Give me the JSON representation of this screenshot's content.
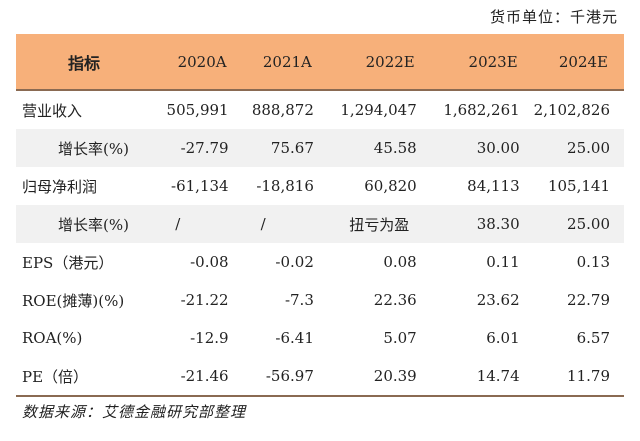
{
  "unit_label": "货币单位：千港元",
  "header": {
    "label": "指标",
    "years": [
      "2020A",
      "2021A",
      "2022E",
      "2023E",
      "2024E"
    ]
  },
  "rows": [
    {
      "label": "营业收入",
      "values": [
        "505,991",
        "888,872",
        "1,294,047",
        "1,682,261",
        "2,102,826"
      ]
    },
    {
      "label": "增长率(%)",
      "values": [
        "-27.79",
        "75.67",
        "45.58",
        "30.00",
        "25.00"
      ]
    },
    {
      "label": "归母净利润",
      "values": [
        "-61,134",
        "-18,816",
        "60,820",
        "84,113",
        "105,141"
      ]
    },
    {
      "label": "增长率(%)",
      "values": [
        "/",
        "/",
        "扭亏为盈",
        "38.30",
        "25.00"
      ]
    },
    {
      "label": "EPS（港元）",
      "values": [
        "-0.08",
        "-0.02",
        "0.08",
        "0.11",
        "0.13"
      ]
    },
    {
      "label": "ROE(摊薄)(%)",
      "values": [
        "-21.22",
        "-7.3",
        "22.36",
        "23.62",
        "22.79"
      ]
    },
    {
      "label": "ROA(%)",
      "values": [
        "-12.9",
        "-6.41",
        "5.07",
        "6.01",
        "6.57"
      ]
    },
    {
      "label": "PE（倍）",
      "values": [
        "-21.46",
        "-56.97",
        "20.39",
        "14.74",
        "11.79"
      ]
    }
  ],
  "source": "数据来源：艾德金融研究部整理"
}
